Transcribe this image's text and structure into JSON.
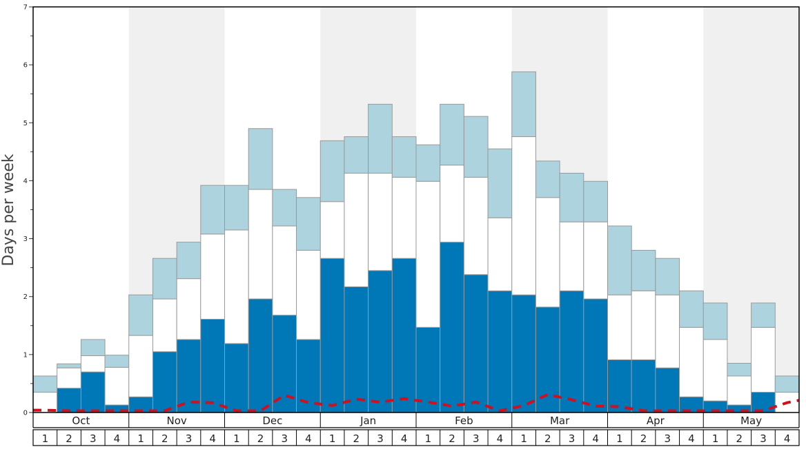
{
  "chart_data": {
    "type": "bar",
    "stacked": true,
    "ylabel": "Days per week",
    "ylim": [
      0,
      7
    ],
    "yticks": [
      "0",
      "1",
      "2",
      "3",
      "4",
      "5",
      "6",
      "7"
    ],
    "months": [
      "Oct",
      "Nov",
      "Dec",
      "Jan",
      "Feb",
      "Mar",
      "Apr",
      "May"
    ],
    "week_labels": [
      "1",
      "2",
      "3",
      "4"
    ],
    "colors": {
      "dark": "#0077b6",
      "white": "#ffffff",
      "light": "#add3df",
      "band": "#f0f0f0",
      "dashed": "#d0101e",
      "bar_edge": "#999999"
    },
    "series": [
      {
        "values": [
          0.0,
          0.42,
          0.7,
          0.13,
          0.27,
          1.05,
          1.26,
          1.61,
          1.19,
          1.96,
          1.68,
          1.26,
          2.66,
          2.17,
          2.45,
          2.66,
          1.47,
          2.94,
          2.38,
          2.1,
          2.03,
          1.82,
          2.1,
          1.96,
          0.91,
          0.91,
          0.77,
          0.27,
          0.2,
          0.13,
          0.35,
          0.0
        ]
      },
      {
        "values": [
          0.35,
          0.35,
          0.28,
          0.65,
          1.06,
          0.91,
          1.05,
          1.47,
          1.96,
          1.89,
          1.54,
          1.54,
          0.98,
          1.96,
          1.68,
          1.4,
          2.52,
          1.33,
          1.68,
          1.26,
          2.73,
          1.89,
          1.19,
          1.33,
          1.12,
          1.19,
          1.26,
          1.2,
          1.06,
          0.5,
          1.12,
          0.35
        ]
      },
      {
        "values": [
          0.28,
          0.07,
          0.28,
          0.21,
          0.7,
          0.7,
          0.63,
          0.84,
          0.77,
          1.05,
          0.63,
          0.91,
          1.05,
          0.63,
          1.19,
          0.7,
          0.63,
          1.05,
          1.05,
          1.19,
          1.12,
          0.63,
          0.84,
          0.7,
          1.19,
          0.7,
          0.63,
          0.63,
          0.63,
          0.22,
          0.42,
          0.28
        ]
      }
    ],
    "dashed_line": {
      "values": [
        0.04,
        0.03,
        0.03,
        0.03,
        0.03,
        0.03,
        0.18,
        0.17,
        0.03,
        0.03,
        0.3,
        0.17,
        0.12,
        0.23,
        0.18,
        0.24,
        0.18,
        0.11,
        0.18,
        0.03,
        0.12,
        0.31,
        0.22,
        0.11,
        0.1,
        0.03,
        0.03,
        0.03,
        0.03,
        0.03,
        0.03,
        0.17
      ]
    }
  }
}
